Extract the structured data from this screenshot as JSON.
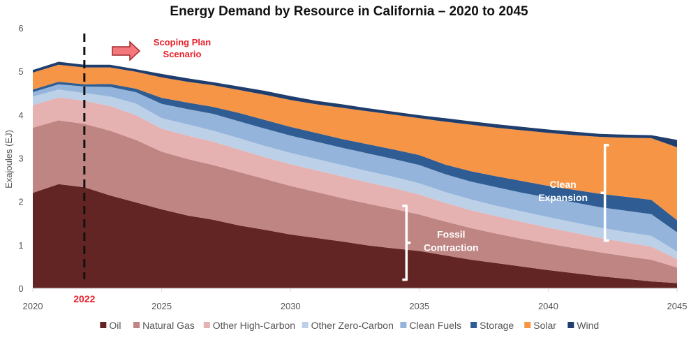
{
  "chart_data": {
    "type": "area",
    "stacked": true,
    "title": "Energy Demand by Resource in California – 2020 to 2045",
    "xlabel": "",
    "ylabel": "Exajoules (EJ)",
    "xlim": [
      2020,
      2045
    ],
    "ylim": [
      0,
      6
    ],
    "x_ticks": [
      2020,
      2025,
      2030,
      2035,
      2040,
      2045
    ],
    "y_ticks": [
      0,
      1,
      2,
      3,
      4,
      5,
      6
    ],
    "grid": false,
    "legend_position": "bottom",
    "x": [
      2020,
      2021,
      2022,
      2023,
      2024,
      2025,
      2026,
      2027,
      2028,
      2029,
      2030,
      2031,
      2032,
      2033,
      2034,
      2035,
      2036,
      2037,
      2038,
      2039,
      2040,
      2041,
      2042,
      2043,
      2044,
      2045
    ],
    "series": [
      {
        "name": "Oil",
        "color": "#632523",
        "values": [
          2.2,
          2.4,
          2.33,
          2.14,
          1.98,
          1.82,
          1.68,
          1.58,
          1.45,
          1.35,
          1.24,
          1.16,
          1.08,
          0.99,
          0.92,
          0.86,
          0.76,
          0.66,
          0.58,
          0.5,
          0.42,
          0.35,
          0.28,
          0.22,
          0.16,
          0.12
        ]
      },
      {
        "name": "Natural Gas",
        "color": "#bf8583",
        "values": [
          1.5,
          1.47,
          1.46,
          1.49,
          1.44,
          1.33,
          1.3,
          1.26,
          1.23,
          1.17,
          1.12,
          1.06,
          1.0,
          0.96,
          0.91,
          0.84,
          0.78,
          0.73,
          0.68,
          0.64,
          0.61,
          0.58,
          0.55,
          0.52,
          0.5,
          0.36
        ]
      },
      {
        "name": "Other High-Carbon",
        "color": "#e6b2b1",
        "values": [
          0.52,
          0.53,
          0.53,
          0.57,
          0.57,
          0.53,
          0.54,
          0.54,
          0.52,
          0.5,
          0.5,
          0.5,
          0.5,
          0.49,
          0.48,
          0.46,
          0.43,
          0.41,
          0.4,
          0.39,
          0.37,
          0.35,
          0.33,
          0.32,
          0.3,
          0.19
        ]
      },
      {
        "name": "Other Zero-Carbon",
        "color": "#bcd0e8",
        "values": [
          0.2,
          0.18,
          0.18,
          0.22,
          0.27,
          0.24,
          0.26,
          0.25,
          0.26,
          0.26,
          0.26,
          0.26,
          0.26,
          0.26,
          0.26,
          0.26,
          0.25,
          0.25,
          0.24,
          0.24,
          0.24,
          0.24,
          0.24,
          0.24,
          0.25,
          0.18
        ]
      },
      {
        "name": "Clean Fuels",
        "color": "#95b4db",
        "values": [
          0.1,
          0.12,
          0.15,
          0.22,
          0.26,
          0.33,
          0.35,
          0.39,
          0.39,
          0.4,
          0.4,
          0.4,
          0.4,
          0.41,
          0.41,
          0.42,
          0.41,
          0.41,
          0.43,
          0.43,
          0.45,
          0.46,
          0.47,
          0.49,
          0.5,
          0.44
        ]
      },
      {
        "name": "Storage",
        "color": "#2f5c93",
        "values": [
          0.06,
          0.06,
          0.05,
          0.07,
          0.08,
          0.14,
          0.15,
          0.16,
          0.19,
          0.2,
          0.2,
          0.2,
          0.2,
          0.21,
          0.22,
          0.23,
          0.22,
          0.24,
          0.25,
          0.27,
          0.27,
          0.29,
          0.31,
          0.32,
          0.33,
          0.28
        ]
      },
      {
        "name": "Solar",
        "color": "#f69545",
        "values": [
          0.39,
          0.39,
          0.39,
          0.38,
          0.39,
          0.47,
          0.48,
          0.5,
          0.53,
          0.58,
          0.62,
          0.66,
          0.72,
          0.76,
          0.8,
          0.85,
          0.99,
          1.07,
          1.12,
          1.17,
          1.22,
          1.26,
          1.31,
          1.36,
          1.42,
          1.68
        ]
      },
      {
        "name": "Wind",
        "color": "#1f3e6e",
        "values": [
          0.06,
          0.07,
          0.06,
          0.06,
          0.06,
          0.08,
          0.08,
          0.07,
          0.08,
          0.09,
          0.09,
          0.08,
          0.08,
          0.07,
          0.07,
          0.07,
          0.08,
          0.08,
          0.08,
          0.08,
          0.08,
          0.08,
          0.07,
          0.07,
          0.07,
          0.17
        ]
      }
    ],
    "annotations": [
      {
        "type": "vertical-dashed-line",
        "x": 2022,
        "label": "2022",
        "label_color": "#e8202a"
      },
      {
        "type": "arrow-text",
        "text": [
          "Scoping Plan",
          "Scenario"
        ],
        "color": "#e8202a",
        "arrow_fill": "#f4777c"
      },
      {
        "type": "bracket-text",
        "text": [
          "Fossil",
          "Contraction"
        ],
        "x": 2034.5,
        "y_range": [
          0.2,
          1.9
        ],
        "color": "#ffffff"
      },
      {
        "type": "bracket-text",
        "text": [
          "Clean",
          "Expansion"
        ],
        "x": 2042.2,
        "y_range": [
          1.1,
          3.3
        ],
        "color": "#ffffff"
      }
    ]
  }
}
